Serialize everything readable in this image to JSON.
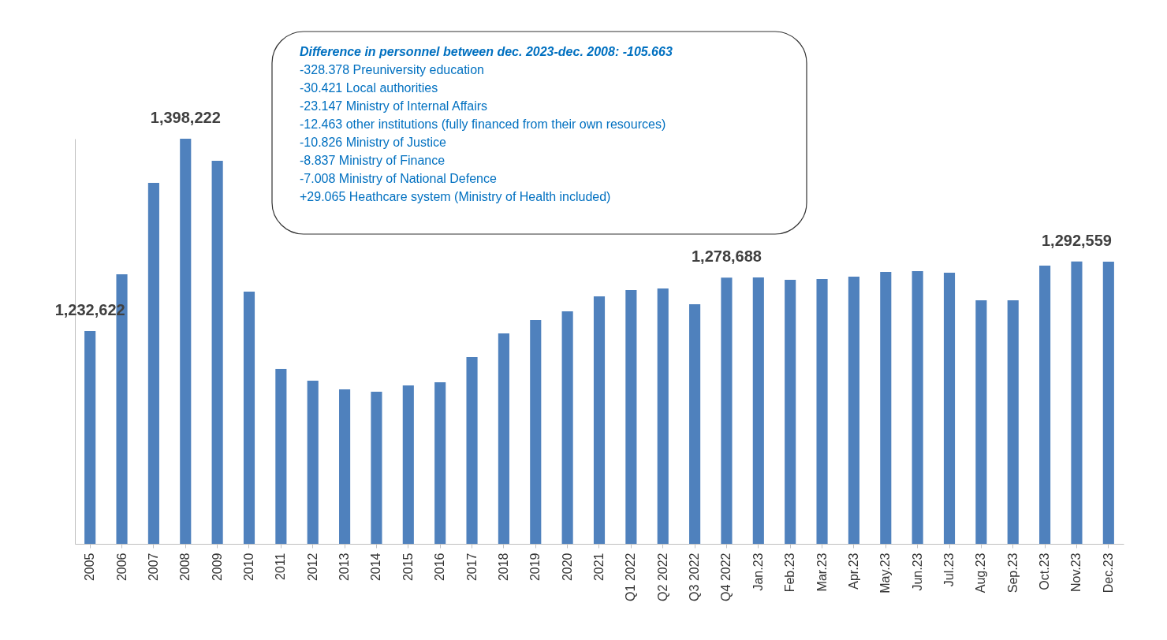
{
  "chart_data": {
    "type": "bar",
    "categories": [
      "2005",
      "2006",
      "2007",
      "2008",
      "2009",
      "2010",
      "2011",
      "2012",
      "2013",
      "2014",
      "2015",
      "2016",
      "2017",
      "2018",
      "2019",
      "2020",
      "2021",
      "Q1 2022",
      "Q2 2022",
      "Q3 2022",
      "Q4 2022",
      "Jan.23",
      "Feb.23",
      "Mar.23",
      "Apr.23",
      "May.23",
      "Jun.23",
      "Jul.23",
      "Aug.23",
      "Sep.23",
      "Oct.23",
      "Nov.23",
      "Dec.23"
    ],
    "values": [
      1232622,
      1281500,
      1360200,
      1398222,
      1379200,
      1266500,
      1200000,
      1189800,
      1182400,
      1180300,
      1185800,
      1188500,
      1210200,
      1230600,
      1242100,
      1249600,
      1262500,
      1267900,
      1269300,
      1255700,
      1278688,
      1278700,
      1276700,
      1277400,
      1279400,
      1283500,
      1284200,
      1282800,
      1259100,
      1259100,
      1288900,
      1292559,
      1292300
    ],
    "value_labels": [
      "1,232,622",
      null,
      null,
      "1,398,222",
      null,
      null,
      null,
      null,
      null,
      null,
      null,
      null,
      null,
      null,
      null,
      null,
      null,
      null,
      null,
      null,
      "1,278,688",
      null,
      null,
      null,
      null,
      null,
      null,
      null,
      null,
      null,
      null,
      "1,292,559",
      null
    ],
    "color": "#4f81bd",
    "ylim": [
      1049400,
      1398222
    ],
    "grid": false,
    "annotations": [
      "Difference in personnel between dec. 2023-dec. 2008: -105.663",
      "-328.378 Preuniversity education",
      "-30.421 Local authorities",
      "-23.147 Ministry of Internal Affairs",
      "-12.463 other institutions (fully financed from their own resources)",
      "-10.826 Ministry of Justice",
      "-8.837 Ministry of Finance",
      "-7.008 Ministry of National Defence",
      "+29.065 Heathcare system (Ministry of Health included)"
    ]
  }
}
